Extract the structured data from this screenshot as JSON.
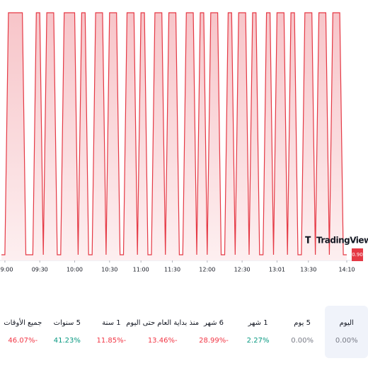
{
  "chart_data": {
    "type": "area",
    "watermark": "TradingView",
    "color": "#e53945",
    "fill": "#f7c5c9",
    "values": [
      0.9,
      0.9,
      0.91,
      0.91,
      0.91,
      0.91,
      0.91,
      0.9,
      0.9,
      0.9,
      0.91,
      0.91,
      0.9,
      0.91,
      0.91,
      0.91,
      0.9,
      0.9,
      0.91,
      0.91,
      0.91,
      0.91,
      0.9,
      0.91,
      0.91,
      0.9,
      0.9,
      0.91,
      0.91,
      0.91,
      0.9,
      0.91,
      0.91,
      0.91,
      0.9,
      0.9,
      0.91,
      0.91,
      0.91,
      0.9,
      0.91,
      0.91,
      0.9,
      0.9,
      0.91,
      0.91,
      0.91,
      0.9,
      0.91,
      0.91,
      0.91,
      0.9,
      0.9,
      0.91,
      0.91,
      0.91,
      0.9,
      0.91,
      0.91,
      0.9,
      0.91,
      0.91,
      0.91,
      0.9,
      0.9,
      0.91,
      0.91,
      0.9,
      0.91,
      0.91,
      0.91,
      0.9,
      0.91,
      0.91,
      0.9,
      0.9,
      0.91,
      0.91,
      0.9,
      0.91,
      0.91,
      0.91,
      0.9,
      0.91,
      0.91,
      0.9,
      0.9,
      0.91,
      0.91,
      0.91,
      0.9,
      0.91,
      0.91,
      0.91,
      0.9,
      0.91,
      0.91,
      0.91,
      0.9,
      0.9
    ],
    "ylim": [
      0.9,
      0.91
    ],
    "xlim": [
      0,
      99
    ],
    "xticks": [
      {
        "value": 1,
        "label": "09:00"
      },
      {
        "value": 11,
        "label": "09:30"
      },
      {
        "value": 21,
        "label": "10:00"
      },
      {
        "value": 31,
        "label": "10:30"
      },
      {
        "value": 40,
        "label": "11:00"
      },
      {
        "value": 49,
        "label": "11:30"
      },
      {
        "value": 59,
        "label": "12:00"
      },
      {
        "value": 69,
        "label": "12:30"
      },
      {
        "value": 79,
        "label": "13:01"
      },
      {
        "value": 88,
        "label": "13:30"
      },
      {
        "value": 99,
        "label": "14:10"
      }
    ],
    "price_label": {
      "value": 0.9,
      "label": "0.90"
    }
  },
  "periods": [
    {
      "label": "اليوم",
      "change": "0.00%",
      "color": "#787b86",
      "selected": true
    },
    {
      "label": "5 يوم",
      "change": "0.00%",
      "color": "#787b86",
      "selected": false
    },
    {
      "label": "1 شهر",
      "change": "2.27%",
      "color": "#089981",
      "selected": false
    },
    {
      "label": "6 شهر",
      "change": "-28.99%",
      "color": "#f23645",
      "selected": false
    },
    {
      "label": "منذ بداية العام حتى اليوم",
      "change": "-13.46%",
      "color": "#f23645",
      "selected": false
    },
    {
      "label": "1 سنة",
      "change": "-11.85%",
      "color": "#f23645",
      "selected": false
    },
    {
      "label": "5 سنوات",
      "change": "41.23%",
      "color": "#089981",
      "selected": false
    },
    {
      "label": "جميع الأوقات",
      "change": "-46.07%",
      "color": "#f23645",
      "selected": false
    }
  ]
}
